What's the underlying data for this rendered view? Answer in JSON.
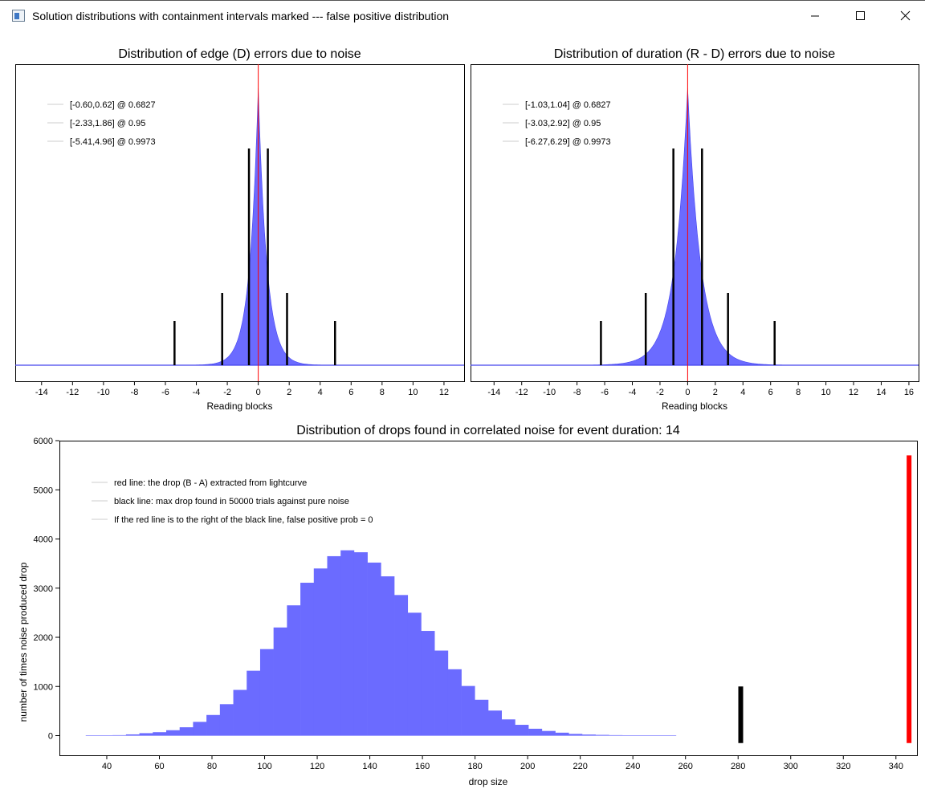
{
  "window": {
    "title": "Solution distributions with containment intervals marked --- false positive distribution",
    "buttons": [
      "minimize-icon",
      "maximize-icon",
      "close-icon"
    ]
  },
  "colors": {
    "histogram_fill": "#6b6bff",
    "histogram_edge": "#4545ee",
    "zero_line": "#ff0000",
    "interval_bar": "#000000",
    "red_marker": "#ff0000",
    "black_marker": "#000000"
  },
  "chart_data": [
    {
      "type": "histogram",
      "title": "Distribution of edge (D) errors due to noise",
      "xlabel": "Reading blocks",
      "ylabel": "",
      "xlim": [
        -15.7,
        13.3
      ],
      "xticks": [
        -14,
        -12,
        -10,
        -8,
        -6,
        -4,
        -2,
        0,
        2,
        4,
        6,
        8,
        10,
        12
      ],
      "grid": false,
      "legend_position": "top-left",
      "legend": [
        "[-0.60,0.62] @ 0.6827",
        "[-2.33,1.86] @ 0.95",
        "[-5.41,4.96] @ 0.9973"
      ],
      "density_peak_at": 0,
      "intervals": [
        {
          "low": -0.6,
          "high": 0.62,
          "confidence": 0.6827
        },
        {
          "low": -2.33,
          "high": 1.86,
          "confidence": 0.95
        },
        {
          "low": -5.41,
          "high": 4.96,
          "confidence": 0.9973
        }
      ],
      "marker_line_x": 0
    },
    {
      "type": "histogram",
      "title": "Distribution of duration (R - D) errors due to noise",
      "xlabel": "Reading blocks",
      "ylabel": "",
      "xlim": [
        -15.7,
        16.7
      ],
      "xticks": [
        -14,
        -12,
        -10,
        -8,
        -6,
        -4,
        -2,
        0,
        2,
        4,
        6,
        8,
        10,
        12,
        14,
        16
      ],
      "grid": false,
      "legend_position": "top-left",
      "legend": [
        "[-1.03,1.04] @ 0.6827",
        "[-3.03,2.92] @ 0.95",
        "[-6.27,6.29] @ 0.9973"
      ],
      "density_peak_at": 0,
      "intervals": [
        {
          "low": -1.03,
          "high": 1.04,
          "confidence": 0.6827
        },
        {
          "low": -3.03,
          "high": 2.92,
          "confidence": 0.95
        },
        {
          "low": -6.27,
          "high": 6.29,
          "confidence": 0.9973
        }
      ],
      "marker_line_x": 0
    },
    {
      "type": "histogram",
      "title": "Distribution of drops found in correlated noise for event duration: 14",
      "xlabel": "drop size",
      "ylabel": "number of times noise produced drop",
      "xlim": [
        22,
        348
      ],
      "ylim": [
        -400,
        6000
      ],
      "xticks": [
        40,
        60,
        80,
        100,
        120,
        140,
        160,
        180,
        200,
        220,
        240,
        260,
        280,
        300,
        320,
        340
      ],
      "yticks": [
        0,
        1000,
        2000,
        3000,
        4000,
        5000,
        6000
      ],
      "grid": false,
      "legend_position": "top-left",
      "legend": [
        "red line: the drop (B - A) extracted from lightcurve",
        "black line: max drop found in 50000 trials against pure noise",
        "If the red line is to the right of the black line, false positive prob = 0"
      ],
      "bins": {
        "start": 32,
        "width": 5.1,
        "counts": [
          0,
          5,
          10,
          25,
          50,
          70,
          110,
          170,
          280,
          420,
          640,
          930,
          1320,
          1760,
          2200,
          2650,
          3110,
          3400,
          3650,
          3770,
          3730,
          3520,
          3240,
          2860,
          2500,
          2130,
          1730,
          1350,
          1010,
          730,
          510,
          330,
          220,
          140,
          95,
          60,
          35,
          22,
          15,
          10,
          6,
          4,
          2,
          1
        ]
      },
      "black_line": {
        "x": 281,
        "height": 1000
      },
      "red_line": {
        "x": 345,
        "height": 5700
      }
    }
  ]
}
